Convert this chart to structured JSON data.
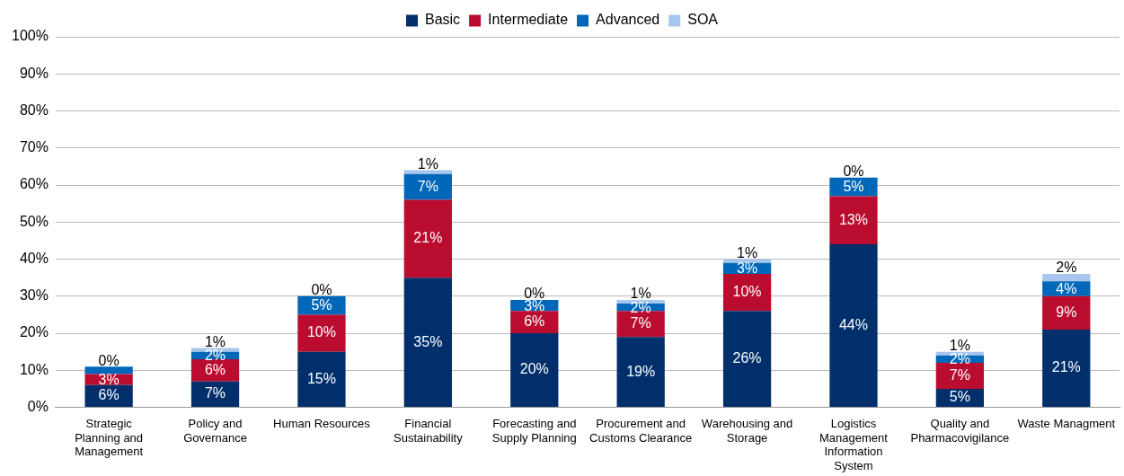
{
  "chart_data": {
    "type": "bar",
    "stacked": true,
    "categories": [
      "Strategic Planning and Management",
      "Policy and Governance",
      "Human Resources",
      "Financial Sustainability",
      "Forecasting and Supply Planning",
      "Procurement and Customs Clearance",
      "Warehousing and Storage",
      "Logistics Management Information System",
      "Quality and Pharmacovigilance",
      "Waste Managment"
    ],
    "series": [
      {
        "name": "Basic",
        "color": "#002f6c",
        "values": [
          6,
          7,
          15,
          35,
          20,
          19,
          26,
          44,
          5,
          21
        ],
        "value_labels": [
          "6%",
          "7%",
          "15%",
          "35%",
          "20%",
          "19%",
          "26%",
          "44%",
          "5%",
          "21%"
        ]
      },
      {
        "name": "Intermediate",
        "color": "#ba0c2f",
        "values": [
          3,
          6,
          10,
          21,
          6,
          7,
          10,
          13,
          7,
          9
        ],
        "value_labels": [
          "3%",
          "6%",
          "10%",
          "21%",
          "6%",
          "7%",
          "10%",
          "13%",
          "7%",
          "9%"
        ]
      },
      {
        "name": "Advanced",
        "color": "#0067b9",
        "values": [
          2,
          2,
          5,
          7,
          3,
          2,
          3,
          5,
          2,
          4
        ],
        "value_labels": [
          null,
          "2%",
          "5%",
          "7%",
          "3%",
          "2%",
          "3%",
          "5%",
          "2%",
          "4%"
        ]
      },
      {
        "name": "SOA",
        "color": "#a7c6ed",
        "values": [
          0,
          1,
          0,
          1,
          0,
          1,
          1,
          0,
          1,
          2
        ],
        "value_labels": [
          "0%",
          "1%",
          "0%",
          "1%",
          "0%",
          "1%",
          "1%",
          "0%",
          "1%",
          "2%"
        ]
      }
    ],
    "ylim": [
      0,
      100
    ],
    "yticks": [
      {
        "value": 0,
        "label": "0%"
      },
      {
        "value": 10,
        "label": "10%"
      },
      {
        "value": 20,
        "label": "20%"
      },
      {
        "value": 30,
        "label": "30%"
      },
      {
        "value": 40,
        "label": "40%"
      },
      {
        "value": 50,
        "label": "50%"
      },
      {
        "value": 60,
        "label": "60%"
      },
      {
        "value": 70,
        "label": "70%"
      },
      {
        "value": 80,
        "label": "80%"
      },
      {
        "value": 90,
        "label": "90%"
      },
      {
        "value": 100,
        "label": "100%"
      }
    ],
    "grid": "y",
    "legend": "top"
  }
}
